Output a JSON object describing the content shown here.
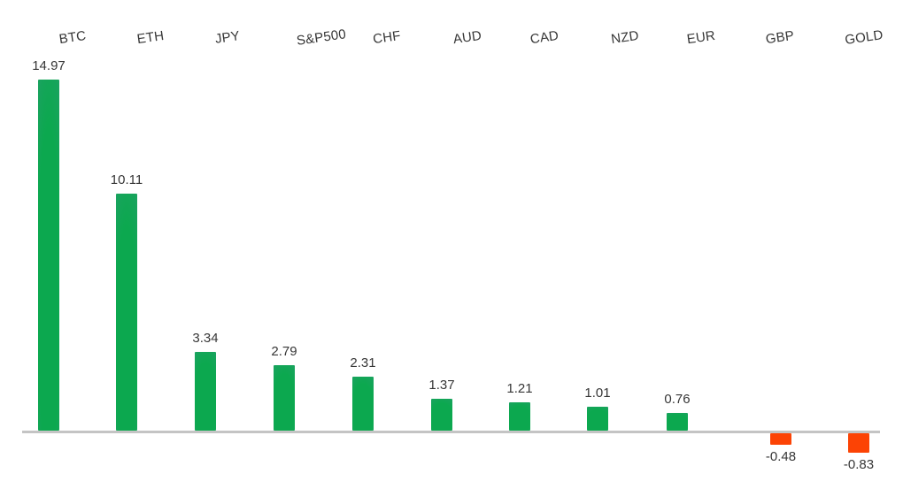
{
  "chart_data": {
    "type": "bar",
    "categories": [
      "BTC",
      "ETH",
      "JPY",
      "S&P500",
      "CHF",
      "AUD",
      "CAD",
      "NZD",
      "EUR",
      "GBP",
      "GOLD"
    ],
    "values": [
      14.97,
      10.11,
      3.34,
      2.79,
      2.31,
      1.37,
      1.21,
      1.01,
      0.76,
      -0.48,
      -0.83
    ],
    "value_labels": [
      "14.97",
      "10.11",
      "3.34",
      "2.79",
      "2.31",
      "1.37",
      "1.21",
      "1.01",
      "0.76",
      "-0.48",
      "-0.83"
    ],
    "title": "",
    "xlabel": "",
    "ylabel": "",
    "ylim": [
      -1,
      16
    ],
    "grid": false,
    "legend": null,
    "category_label_position": "top",
    "value_labels_shown": true,
    "colors": {
      "positive_bar": "#0CA84F",
      "positive_bar_edge": "#2E9B77",
      "negative_bar": "#FC4305",
      "negative_bar_edge": "#F0661F",
      "axis_line": "#C4C4C4",
      "text": "#363636"
    }
  }
}
